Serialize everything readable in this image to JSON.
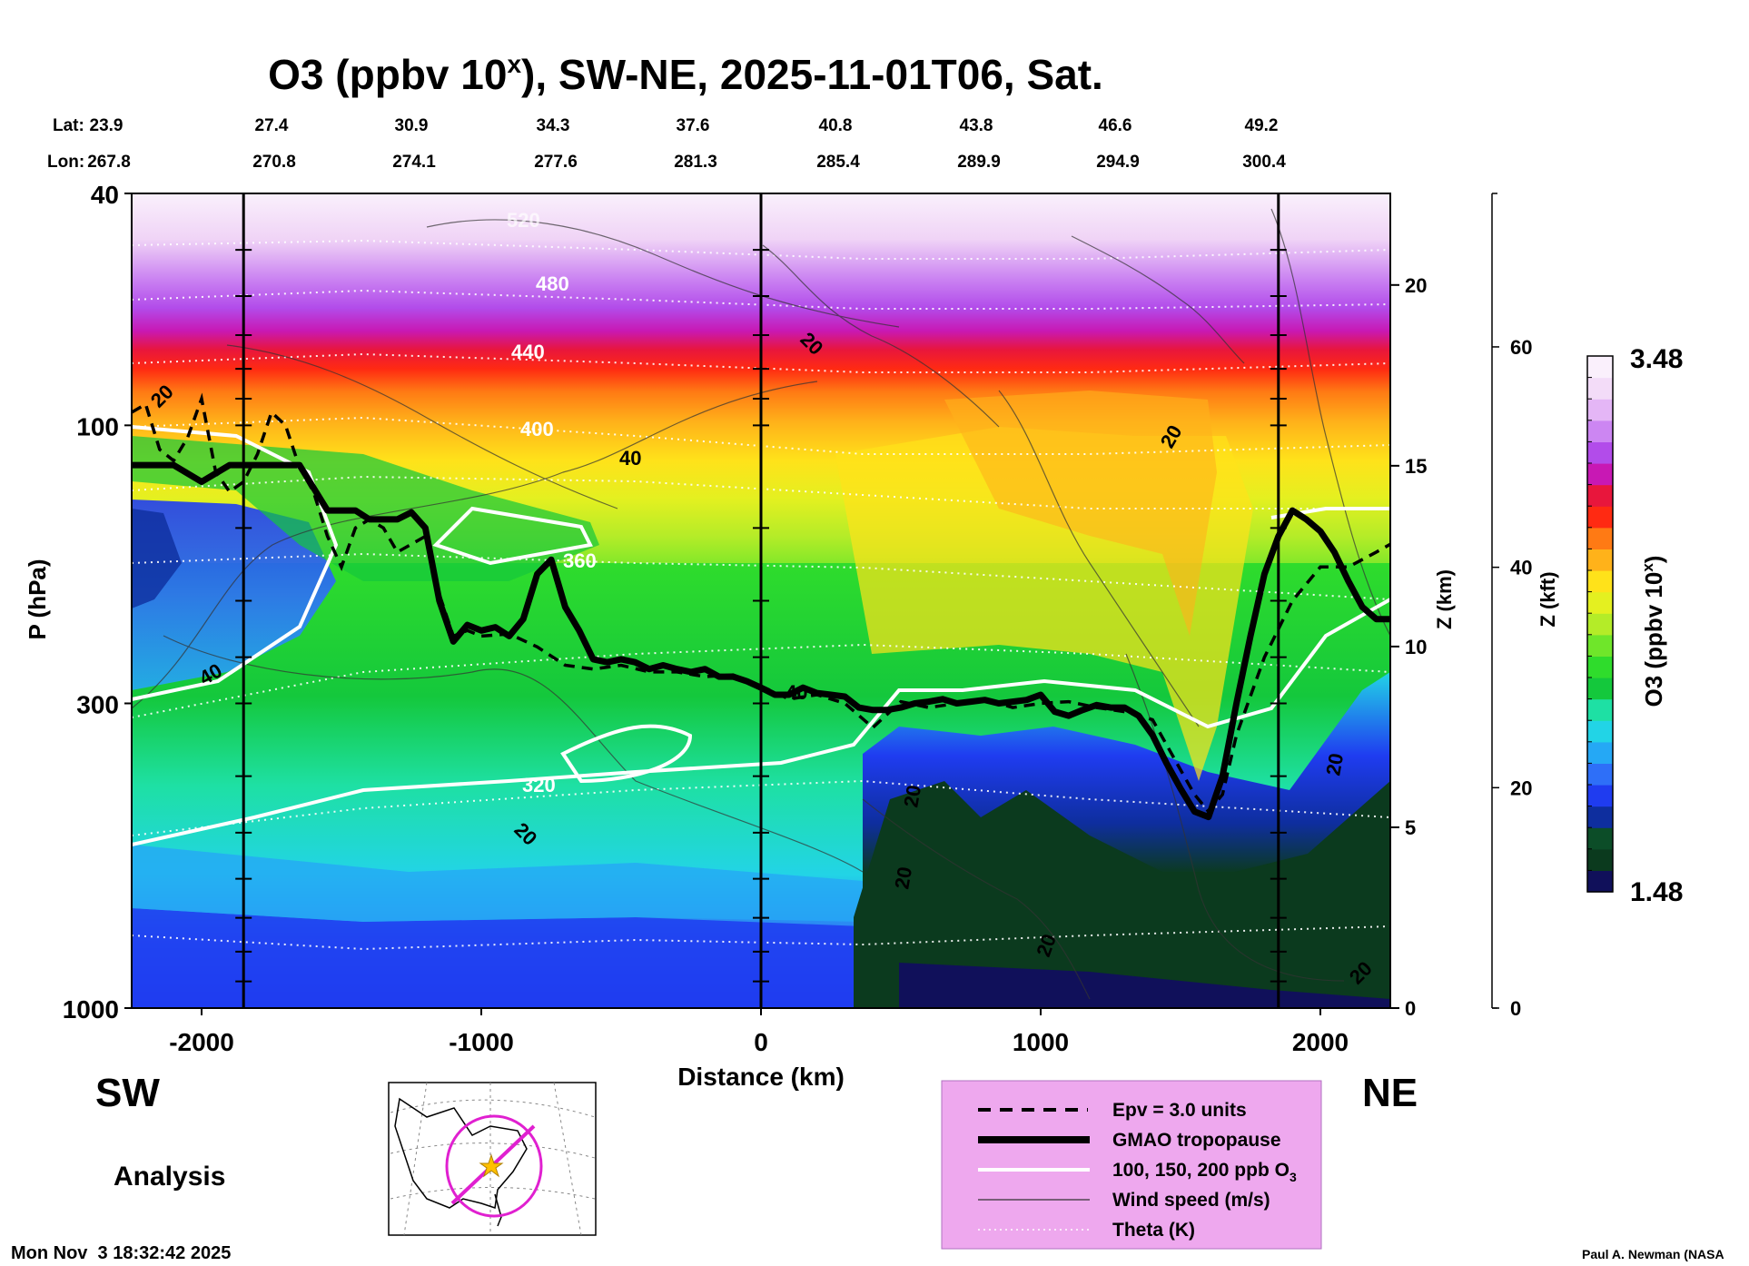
{
  "chart_data": {
    "type": "heatmap",
    "title": "O3 (ppbv 10",
    "title_sup": "x",
    "title_rest": "), SW-NE, 2025-11-01T06, Sat.",
    "lat_label": "Lat:",
    "lon_label": "Lon:",
    "lats": [
      "23.9",
      "27.4",
      "30.9",
      "34.3",
      "37.6",
      "40.8",
      "43.8",
      "46.6",
      "49.2"
    ],
    "lons": [
      "267.8",
      "270.8",
      "274.1",
      "277.6",
      "281.3",
      "285.4",
      "289.9",
      "294.9",
      "300.4"
    ],
    "xlabel": "Distance (km)",
    "ylabel": "P (hPa)",
    "xlim": [
      -2250,
      2250
    ],
    "x_ticks": [
      -2000,
      -1000,
      0,
      1000,
      2000
    ],
    "x_tick_labels": [
      "-2000",
      "-1000",
      "0",
      "1000",
      "2000"
    ],
    "ylim": [
      1000,
      40
    ],
    "y_ticks": [
      40,
      100,
      300,
      1000
    ],
    "y_tick_labels": [
      "40",
      "100",
      "300",
      "1000"
    ],
    "z_km_label": "Z (km)",
    "z_km_ticks": [
      0,
      5,
      10,
      15,
      20
    ],
    "z_km_tick_labels": [
      "0",
      "5",
      "10",
      "15",
      "20"
    ],
    "z_kft_label": "Z (kft)",
    "z_kft_ticks": [
      0,
      20,
      40,
      60
    ],
    "z_kft_tick_labels": [
      "0",
      "20",
      "40",
      "60"
    ],
    "colorbar": {
      "label": "O3 (ppbv 10",
      "label_sup": "x",
      "label_rest": ")",
      "max": "3.48",
      "min": "1.48",
      "colors": [
        "#10105a",
        "#0b3a1e",
        "#0c4d28",
        "#0e2e9e",
        "#1f3cf0",
        "#2e6ff8",
        "#25a8f5",
        "#22d4e6",
        "#1ee0a4",
        "#14c83c",
        "#2fdc2c",
        "#6fe62a",
        "#b4ec28",
        "#e4f020",
        "#ffe21a",
        "#ffb21a",
        "#ff7a14",
        "#ff2a12",
        "#e8163c",
        "#c818b4",
        "#b24cea",
        "#cc86f2",
        "#e4b6f6",
        "#f3dcf8",
        "#faf0fc"
      ]
    },
    "sections": [
      {
        "x": -1850,
        "label": "vertical section line"
      },
      {
        "x": 0,
        "label": "vertical section line"
      },
      {
        "x": 1850,
        "label": "vertical section line"
      }
    ],
    "tropopause": {
      "x": [
        -2250,
        -2100,
        -2000,
        -1900,
        -1850,
        -1800,
        -1650,
        -1550,
        -1450,
        -1400,
        -1300,
        -1250,
        -1200,
        -1150,
        -1100,
        -1050,
        -1000,
        -950,
        -900,
        -850,
        -800,
        -750,
        -700,
        -650,
        -600,
        -550,
        -500,
        -450,
        -400,
        -350,
        -300,
        -250,
        -200,
        -150,
        -100,
        -50,
        0,
        50,
        100,
        150,
        200,
        250,
        300,
        350,
        400,
        450,
        500,
        550,
        600,
        650,
        700,
        750,
        800,
        850,
        900,
        950,
        1000,
        1050,
        1100,
        1150,
        1200,
        1250,
        1300,
        1350,
        1400,
        1450,
        1500,
        1550,
        1600,
        1650,
        1700,
        1750,
        1800,
        1850,
        1900,
        1950,
        2000,
        2050,
        2100,
        2150,
        2200,
        2250
      ],
      "p": [
        117,
        117,
        125,
        117,
        117,
        117,
        117,
        140,
        140,
        145,
        145,
        141,
        150,
        200,
        235,
        220,
        225,
        222,
        230,
        215,
        180,
        170,
        205,
        225,
        252,
        255,
        252,
        255,
        262,
        258,
        262,
        265,
        262,
        270,
        270,
        275,
        282,
        290,
        290,
        282,
        288,
        290,
        292,
        305,
        308,
        308,
        305,
        300,
        298,
        295,
        300,
        298,
        296,
        300,
        298,
        296,
        290,
        310,
        315,
        308,
        302,
        305,
        305,
        315,
        340,
        380,
        420,
        460,
        470,
        400,
        300,
        230,
        180,
        155,
        140,
        145,
        152,
        165,
        185,
        205,
        215,
        215
      ]
    },
    "epv": {
      "x": [
        -2250,
        -2200,
        -2150,
        -2100,
        -2050,
        -2000,
        -1950,
        -1900,
        -1850,
        -1800,
        -1750,
        -1700,
        -1650,
        -1600,
        -1550,
        -1500,
        -1450,
        -1400,
        -1350,
        -1300,
        -1250,
        -1200,
        -1150,
        -1100,
        -1050,
        -1000,
        -900,
        -800,
        -700,
        -600,
        -500,
        -400,
        -300,
        -200,
        -100,
        0,
        100,
        200,
        300,
        400,
        500,
        600,
        700,
        800,
        900,
        1000,
        1100,
        1200,
        1300,
        1400,
        1500,
        1550,
        1600,
        1650,
        1700,
        1800,
        1900,
        2000,
        2100,
        2200,
        2250
      ],
      "p": [
        95,
        92,
        110,
        115,
        105,
        90,
        120,
        130,
        125,
        112,
        95,
        100,
        118,
        130,
        155,
        175,
        150,
        145,
        150,
        165,
        160,
        155,
        195,
        230,
        225,
        230,
        228,
        240,
        258,
        262,
        258,
        265,
        265,
        270,
        268,
        280,
        295,
        290,
        300,
        330,
        298,
        305,
        300,
        295,
        305,
        300,
        298,
        305,
        310,
        320,
        390,
        430,
        460,
        430,
        340,
        250,
        200,
        175,
        175,
        165,
        160
      ]
    },
    "o3_isolines_label": "100, 150, 200 ppb O3",
    "theta_labels": [
      "320",
      "360",
      "400",
      "440",
      "480",
      "520"
    ],
    "wind_labels": [
      "20",
      "20",
      "20",
      "40",
      "40",
      "40",
      "20",
      "20",
      "20",
      "20",
      "20",
      "20",
      "20",
      "20"
    ],
    "panel_labels": {
      "sw": "SW",
      "ne": "NE",
      "analysis": "Analysis"
    },
    "legend": [
      {
        "label": "Epv = 3.0 units",
        "style": "dashed"
      },
      {
        "label": "GMAO tropopause",
        "style": "thick"
      },
      {
        "label": "100, 150, 200 ppb O",
        "sub": "3",
        "style": "white"
      },
      {
        "label": "Wind speed (m/s)",
        "style": "thin"
      },
      {
        "label": "Theta (K)",
        "style": "dotted"
      }
    ],
    "timestamp": "Mon Nov  3 18:32:42 2025",
    "credit": "Paul A. Newman (NASA"
  }
}
